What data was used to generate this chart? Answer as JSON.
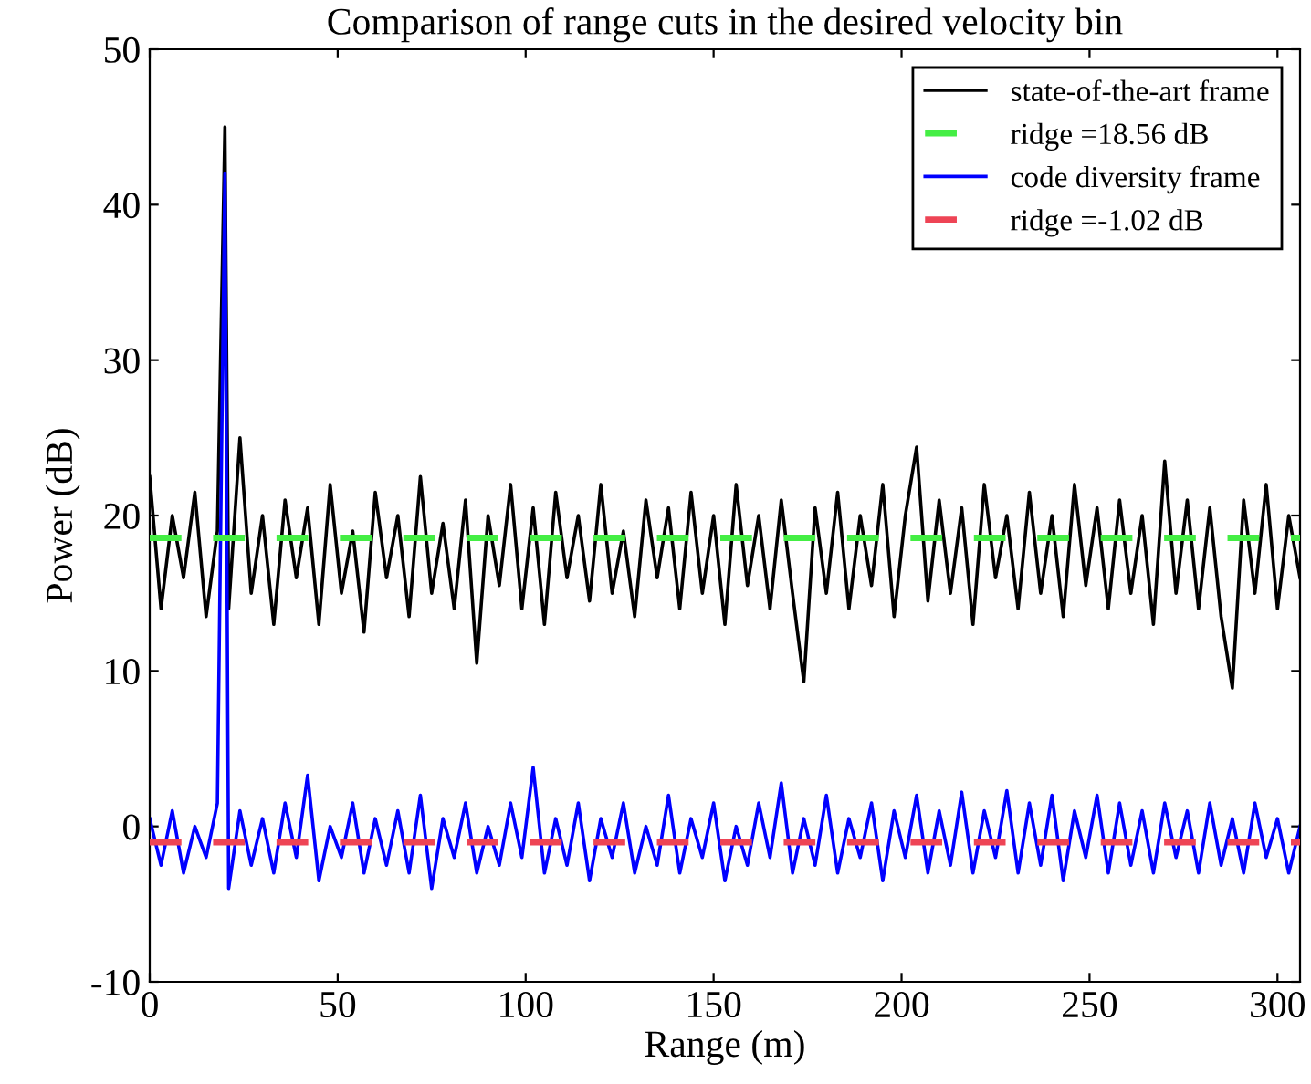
{
  "chart_data": {
    "type": "line",
    "title": "Comparison of range cuts in the desired velocity bin",
    "xlabel": "Range (m)",
    "ylabel": "Power (dB)",
    "x": [
      0,
      3,
      6,
      9,
      12,
      15,
      18,
      20,
      21,
      24,
      27,
      30,
      33,
      36,
      39,
      42,
      45,
      48,
      51,
      54,
      57,
      60,
      63,
      66,
      69,
      72,
      75,
      78,
      81,
      84,
      87,
      90,
      93,
      96,
      99,
      102,
      105,
      108,
      111,
      114,
      117,
      120,
      123,
      126,
      129,
      132,
      135,
      138,
      141,
      144,
      147,
      150,
      153,
      156,
      159,
      162,
      165,
      168,
      171,
      174,
      177,
      180,
      183,
      186,
      189,
      192,
      195,
      198,
      201,
      204,
      207,
      210,
      213,
      216,
      219,
      222,
      225,
      228,
      231,
      234,
      237,
      240,
      243,
      246,
      249,
      252,
      255,
      258,
      261,
      264,
      267,
      270,
      273,
      276,
      279,
      282,
      285,
      288,
      291,
      294,
      297,
      300,
      303,
      306
    ],
    "series": [
      {
        "name": "state-of-the-art frame",
        "color": "#000000",
        "line_style": "solid",
        "values": [
          22.5,
          14,
          20,
          16,
          21.5,
          13.5,
          19,
          45,
          14,
          25,
          15,
          20,
          13,
          21,
          16,
          20.5,
          13,
          22,
          15,
          19,
          12.5,
          21.5,
          16,
          20,
          13.5,
          22.5,
          15,
          19.5,
          14,
          21,
          10.5,
          20,
          15.5,
          22,
          14,
          20.5,
          13,
          21.5,
          16,
          20,
          14.5,
          22,
          15,
          19,
          13.5,
          21,
          16,
          20.5,
          14,
          21.5,
          15,
          20,
          13,
          22,
          15.5,
          20,
          14,
          21,
          15,
          9.3,
          20.5,
          15,
          21.5,
          14,
          20,
          15.5,
          22,
          13.5,
          20,
          24.4,
          14.5,
          21,
          15,
          20.5,
          13,
          22,
          16,
          20,
          14,
          21.5,
          15,
          20,
          13.5,
          22,
          15.5,
          20.5,
          14,
          21,
          15,
          20,
          13,
          23.5,
          15,
          21,
          14,
          20.5,
          13.5,
          8.9,
          21,
          15,
          22,
          14,
          20,
          16
        ]
      },
      {
        "name": "code diversity frame",
        "color": "#0000ff",
        "line_style": "solid",
        "values": [
          0.5,
          -2.5,
          1,
          -3,
          0,
          -2,
          1.5,
          42,
          -4,
          1,
          -2.5,
          0.5,
          -3,
          1.5,
          -2,
          3.3,
          -3.5,
          0,
          -2,
          1.5,
          -3,
          0.5,
          -2.5,
          1,
          -3,
          2,
          -4,
          0.5,
          -2,
          1.5,
          -3,
          0,
          -2.5,
          1.5,
          -2,
          3.8,
          -3,
          0.5,
          -2.5,
          1.5,
          -3.5,
          0.5,
          -2,
          1.5,
          -3,
          0,
          -2.5,
          2,
          -3,
          0.5,
          -2,
          1.5,
          -3.5,
          0,
          -2.5,
          1.5,
          -2,
          2.8,
          -3,
          0.5,
          -2.5,
          2,
          -3,
          0.5,
          -2,
          1.5,
          -3.5,
          1,
          -2,
          2,
          -3,
          1,
          -2.5,
          2.2,
          -3,
          1,
          -2,
          2.3,
          -3,
          1.5,
          -2.5,
          2,
          -3.5,
          1,
          -2,
          2,
          -3,
          1.5,
          -2.5,
          1,
          -3,
          1.5,
          -2,
          1,
          -3,
          1.5,
          -2.5,
          0.5,
          -3,
          1.5,
          -2,
          0.5,
          -3,
          0
        ]
      }
    ],
    "ref_lines": [
      {
        "axis": "y",
        "value": 18.56,
        "label": "ridge =18.56 dB",
        "color": "#44ee44",
        "line_style": "dashed"
      },
      {
        "axis": "y",
        "value": -1.02,
        "label": "ridge =-1.02 dB",
        "color": "#ee4455",
        "line_style": "dashed"
      }
    ],
    "xlim": [
      0,
      306
    ],
    "ylim": [
      -10,
      50
    ],
    "xticks": [
      0,
      50,
      100,
      150,
      200,
      250,
      300
    ],
    "yticks": [
      -10,
      0,
      10,
      20,
      30,
      40,
      50
    ],
    "grid": false,
    "legend": "top right"
  }
}
